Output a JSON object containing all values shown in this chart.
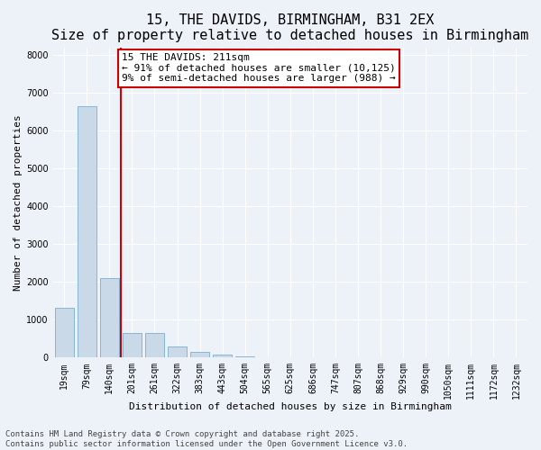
{
  "title": "15, THE DAVIDS, BIRMINGHAM, B31 2EX",
  "subtitle": "Size of property relative to detached houses in Birmingham",
  "xlabel": "Distribution of detached houses by size in Birmingham",
  "ylabel": "Number of detached properties",
  "categories": [
    "19sqm",
    "79sqm",
    "140sqm",
    "201sqm",
    "261sqm",
    "322sqm",
    "383sqm",
    "443sqm",
    "504sqm",
    "565sqm",
    "625sqm",
    "686sqm",
    "747sqm",
    "807sqm",
    "868sqm",
    "929sqm",
    "990sqm",
    "1050sqm",
    "1111sqm",
    "1172sqm",
    "1232sqm"
  ],
  "values": [
    1320,
    6650,
    2100,
    650,
    650,
    290,
    140,
    75,
    40,
    18,
    8,
    4,
    2,
    1,
    0,
    0,
    0,
    0,
    0,
    0,
    0
  ],
  "bar_color": "#c9d9e8",
  "bar_edge_color": "#7aafd4",
  "vline_color": "#cc0000",
  "vline_x_index": 3,
  "annotation_text": "15 THE DAVIDS: 211sqm\n← 91% of detached houses are smaller (10,125)\n9% of semi-detached houses are larger (988) →",
  "annotation_box_edgecolor": "#cc0000",
  "annotation_box_facecolor": "#ffffff",
  "ylim": [
    0,
    8200
  ],
  "yticks": [
    0,
    1000,
    2000,
    3000,
    4000,
    5000,
    6000,
    7000,
    8000
  ],
  "footer_line1": "Contains HM Land Registry data © Crown copyright and database right 2025.",
  "footer_line2": "Contains public sector information licensed under the Open Government Licence v3.0.",
  "fig_facecolor": "#edf2f9",
  "ax_facecolor": "#edf2f9",
  "title_fontsize": 11,
  "axis_label_fontsize": 8,
  "tick_fontsize": 7,
  "footer_fontsize": 6.5,
  "annotation_fontsize": 8
}
